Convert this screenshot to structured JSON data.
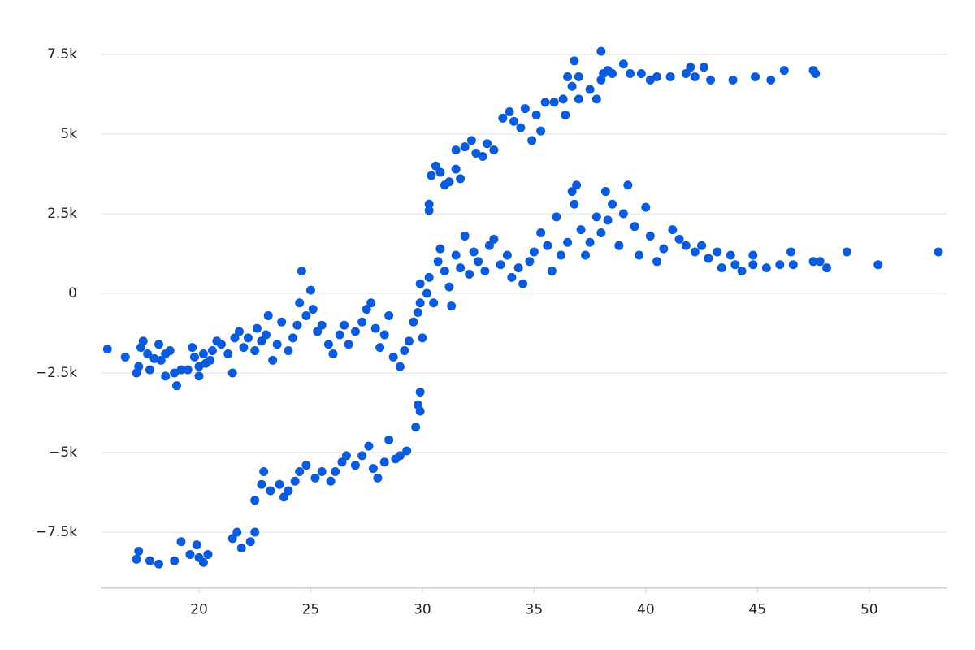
{
  "chart_data": {
    "type": "scatter",
    "x": [
      15.9,
      16.7,
      17.2,
      17.3,
      17.4,
      17.5,
      17.7,
      17.8,
      18.0,
      18.2,
      18.3,
      18.5,
      18.5,
      18.7,
      18.9,
      19.0,
      19.2,
      19.5,
      19.7,
      19.8,
      20.0,
      20.0,
      20.2,
      20.3,
      20.5,
      20.6,
      20.8,
      21.0,
      21.3,
      21.5,
      21.6,
      21.8,
      22.0,
      22.2,
      22.5,
      22.6,
      22.8,
      23.0,
      23.1,
      23.3,
      23.5,
      23.7,
      24.0,
      24.2,
      24.4,
      24.5,
      24.6,
      24.8,
      25.0,
      25.1,
      25.3,
      25.5,
      25.8,
      26.0,
      26.3,
      26.5,
      26.7,
      27.0,
      27.3,
      27.5,
      27.7,
      27.9,
      28.1,
      28.3,
      28.5,
      28.7,
      29.0,
      29.2,
      29.4,
      29.6,
      29.8,
      30.0,
      29.9,
      17.2,
      17.3,
      17.8,
      18.2,
      18.9,
      19.2,
      19.6,
      19.9,
      20.0,
      20.2,
      20.4,
      21.5,
      21.7,
      21.9,
      22.3,
      22.5,
      22.5,
      22.8,
      22.9,
      23.2,
      23.6,
      23.8,
      24.0,
      24.3,
      24.5,
      24.8,
      25.2,
      25.5,
      25.9,
      26.1,
      26.4,
      26.6,
      27.0,
      27.3,
      27.6,
      27.8,
      28.0,
      28.3,
      28.5,
      28.8,
      29.0,
      29.3,
      29.7,
      29.8,
      29.9,
      29.9,
      29.9,
      30.2,
      30.3,
      30.5,
      30.7,
      30.8,
      31.0,
      31.2,
      31.3,
      31.5,
      31.7,
      31.9,
      32.1,
      32.3,
      32.5,
      32.8,
      33.0,
      33.2,
      33.5,
      33.8,
      34.0,
      34.3,
      34.5,
      34.8,
      35.0,
      35.3,
      35.6,
      35.8,
      36.0,
      36.2,
      36.5,
      36.7,
      36.8,
      36.9,
      37.1,
      37.3,
      37.5,
      37.8,
      38.0,
      38.2,
      38.3,
      38.5,
      38.8,
      39.0,
      39.2,
      39.5,
      39.7,
      40.0,
      40.2,
      40.5,
      40.8,
      41.2,
      41.5,
      41.8,
      42.2,
      42.5,
      42.8,
      43.2,
      43.4,
      43.8,
      44.0,
      44.3,
      44.8,
      44.8,
      45.4,
      46.0,
      46.5,
      46.6,
      47.5,
      47.8,
      48.1,
      49.0,
      50.4,
      53.1,
      30.3,
      30.3,
      30.4,
      30.6,
      30.8,
      31.0,
      31.2,
      31.5,
      31.7,
      31.5,
      31.9,
      32.2,
      32.4,
      32.7,
      32.9,
      33.2,
      33.6,
      33.9,
      34.1,
      34.4,
      34.6,
      34.9,
      35.1,
      35.3,
      35.5,
      35.9,
      36.3,
      36.4,
      36.5,
      36.7,
      36.8,
      37.0,
      37.0,
      37.5,
      37.8,
      38.0,
      38.1,
      38.3,
      38.0,
      38.5,
      39.0,
      39.3,
      39.8,
      40.2,
      40.5,
      41.1,
      41.8,
      42.0,
      42.2,
      42.6,
      42.9,
      43.9,
      44.9,
      45.6,
      46.2,
      47.5,
      47.6
    ],
    "y": [
      -1750,
      -2000,
      -2500,
      -2300,
      -1700,
      -1500,
      -1900,
      -2400,
      -2050,
      -1600,
      -2100,
      -1900,
      -2600,
      -1800,
      -2500,
      -2900,
      -2400,
      -2400,
      -1700,
      -2000,
      -2300,
      -2600,
      -1900,
      -2200,
      -2100,
      -1800,
      -1500,
      -1600,
      -1900,
      -2500,
      -1400,
      -1200,
      -1700,
      -1400,
      -1800,
      -1100,
      -1500,
      -1300,
      -700,
      -2100,
      -1600,
      -900,
      -1800,
      -1400,
      -1000,
      -300,
      700,
      -700,
      100,
      -500,
      -1200,
      -1000,
      -1600,
      -1900,
      -1300,
      -1000,
      -1600,
      -1200,
      -900,
      -500,
      -300,
      -1100,
      -1700,
      -1300,
      -700,
      -2000,
      -2300,
      -1800,
      -1500,
      -900,
      -600,
      -1400,
      -300,
      -8350,
      -8100,
      -8400,
      -8500,
      -8400,
      -7800,
      -8200,
      -7900,
      -8300,
      -8450,
      -8200,
      -7700,
      -7500,
      -8000,
      -7800,
      -7500,
      -6500,
      -6000,
      -5600,
      -6200,
      -6000,
      -6400,
      -6200,
      -5900,
      -5600,
      -5400,
      -5800,
      -5600,
      -5900,
      -5600,
      -5300,
      -5100,
      -5400,
      -5100,
      -4800,
      -5500,
      -5800,
      -5300,
      -4600,
      -5200,
      -5100,
      -4950,
      -4200,
      -3500,
      -3100,
      -3700,
      300,
      0,
      500,
      -300,
      1000,
      1400,
      700,
      200,
      -400,
      1200,
      800,
      1800,
      600,
      1300,
      1000,
      700,
      1500,
      1700,
      900,
      1200,
      500,
      800,
      300,
      1000,
      1300,
      1900,
      1500,
      700,
      2400,
      1200,
      1600,
      3200,
      2800,
      3400,
      2000,
      1200,
      1600,
      2400,
      1900,
      3200,
      2300,
      2800,
      1500,
      2500,
      3400,
      2100,
      1200,
      2700,
      1800,
      1000,
      1400,
      2000,
      1700,
      1500,
      1300,
      1500,
      1100,
      1300,
      800,
      1200,
      900,
      700,
      1200,
      900,
      800,
      900,
      1300,
      900,
      1000,
      1000,
      800,
      1300,
      900,
      1300,
      2600,
      2800,
      3700,
      4000,
      3800,
      3400,
      3500,
      3900,
      3600,
      4500,
      4600,
      4800,
      4400,
      4300,
      4700,
      4500,
      5500,
      5700,
      5400,
      5200,
      5800,
      4800,
      5600,
      5100,
      6000,
      6000,
      6100,
      5600,
      6800,
      6500,
      7300,
      6100,
      6800,
      6400,
      6100,
      7600,
      6900,
      7000,
      6700,
      6900,
      7200,
      6900,
      6900,
      6700,
      6800,
      6800,
      6900,
      7100,
      6800,
      7100,
      6700,
      6700,
      6800,
      6700,
      7000,
      7000,
      6900
    ],
    "color": "#0a5bdc",
    "xlim": [
      15.6,
      53.5
    ],
    "ylim": [
      -9250,
      8000
    ],
    "xticks": [
      20,
      25,
      30,
      35,
      40,
      45,
      50
    ],
    "yticks": [
      {
        "value": -7500,
        "label": "−7.5k"
      },
      {
        "value": -5000,
        "label": "−5k"
      },
      {
        "value": -2500,
        "label": "−2.5k"
      },
      0,
      {
        "value": 2500,
        "label": "2.5k"
      },
      {
        "value": 5000,
        "label": "5k"
      },
      {
        "value": 7500,
        "label": "7.5k"
      }
    ],
    "grid": true
  }
}
